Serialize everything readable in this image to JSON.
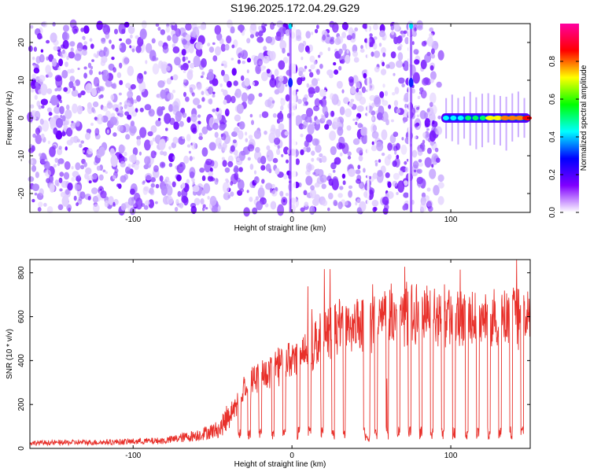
{
  "title": "S196.2025.172.04.29.G29",
  "chart_data": [
    {
      "type": "heatmap",
      "xlabel": "Height of straight line (km)",
      "ylabel": "Frequency (Hz)",
      "xlim": [
        -165,
        150
      ],
      "ylim": [
        -25,
        25
      ],
      "xticks": [
        -100,
        0,
        100
      ],
      "yticks": [
        -20,
        -10,
        0,
        10,
        20
      ],
      "colorbar": {
        "label": "Normalized spectral amplitude",
        "range": [
          0.0,
          1.0
        ],
        "ticks": [
          0.0,
          0.2,
          0.4,
          0.6,
          0.8
        ],
        "colors": [
          "#ffffff",
          "#8000ff",
          "#0000ff",
          "#00ffff",
          "#00ff00",
          "#ffff00",
          "#ff0000",
          "#ff00a0"
        ]
      },
      "regions": [
        {
          "name": "noise",
          "x_range": [
            -165,
            94
          ],
          "f_range": [
            -25,
            25
          ],
          "level": 0.15
        },
        {
          "name": "narrow line",
          "x": -1,
          "f_range": [
            -25,
            25
          ],
          "level": 0.3
        },
        {
          "name": "narrow line",
          "x": 75,
          "f_range": [
            -25,
            25
          ],
          "level": 0.25
        },
        {
          "name": "tone",
          "x_range": [
            94,
            150
          ],
          "f": 0,
          "level": 0.95
        }
      ]
    },
    {
      "type": "line",
      "xlabel": "Height of straight line (km)",
      "ylabel": "SNR (10 * v/v)",
      "xlim": [
        -165,
        150
      ],
      "ylim": [
        0,
        860
      ],
      "xticks": [
        -100,
        0,
        100
      ],
      "yticks": [
        0,
        200,
        400,
        600,
        800
      ],
      "series": [
        {
          "color": "#e8302a",
          "envelope": [
            {
              "x": -165,
              "y": 25
            },
            {
              "x": -120,
              "y": 28
            },
            {
              "x": -80,
              "y": 35
            },
            {
              "x": -60,
              "y": 60
            },
            {
              "x": -45,
              "y": 90
            },
            {
              "x": -38,
              "y": 180
            },
            {
              "x": -30,
              "y": 290
            },
            {
              "x": -20,
              "y": 350
            },
            {
              "x": -10,
              "y": 400
            },
            {
              "x": 0,
              "y": 430
            },
            {
              "x": 10,
              "y": 470
            },
            {
              "x": 20,
              "y": 540
            },
            {
              "x": 30,
              "y": 580
            },
            {
              "x": 40,
              "y": 600
            },
            {
              "x": 44,
              "y": 590
            },
            {
              "x": 55,
              "y": 620
            },
            {
              "x": 70,
              "y": 650
            },
            {
              "x": 80,
              "y": 650
            },
            {
              "x": 90,
              "y": 640
            },
            {
              "x": 100,
              "y": 640
            },
            {
              "x": 120,
              "y": 620
            },
            {
              "x": 150,
              "y": 620
            }
          ],
          "dropouts_x": [
            -33,
            -27,
            -20,
            -12,
            -5,
            4,
            11,
            19,
            26,
            33,
            46,
            53,
            60,
            67,
            74,
            81,
            88,
            95,
            102,
            110,
            117,
            124,
            131,
            138,
            145
          ]
        }
      ]
    }
  ]
}
